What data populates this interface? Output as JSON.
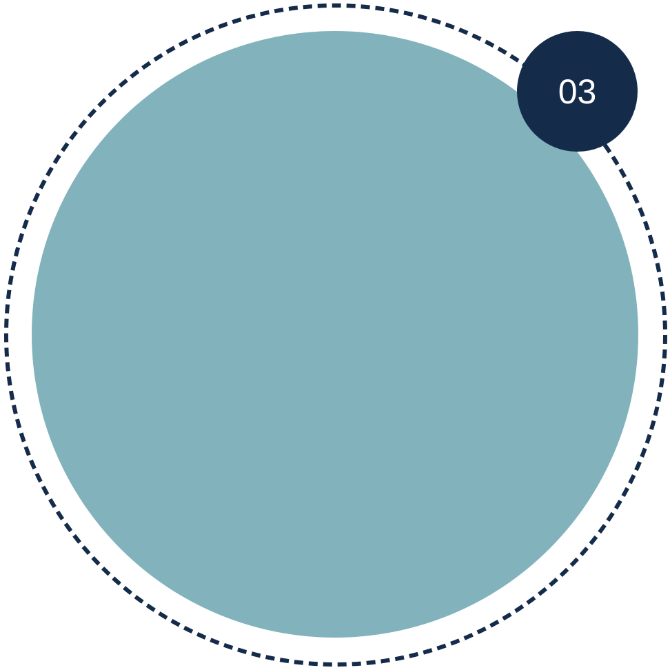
{
  "badge": {
    "label": "03"
  },
  "colors": {
    "ring": "#142B4A",
    "fill": "#82B3BD",
    "badge": "#142B4A",
    "badge_text": "#FFFFFF"
  }
}
